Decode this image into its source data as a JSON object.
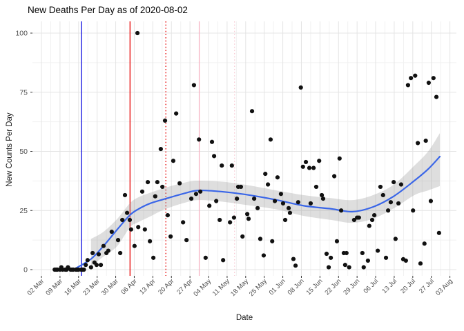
{
  "title": "New Deaths Per Day as of 2020-08-02",
  "chart_data": {
    "type": "scatter",
    "title": "New Deaths Per Day as of 2020-08-02",
    "xlabel": "Date",
    "ylabel": "New Counts Per Day",
    "x_unit": "days since first tick (02 Mar 2020)",
    "x_tick_labels": [
      "02 Mar",
      "09 Mar",
      "16 Mar",
      "23 Mar",
      "30 Mar",
      "06 Apr",
      "13 Apr",
      "20 Apr",
      "27 Apr",
      "04 May",
      "11 May",
      "18 May",
      "25 May",
      "01 Jun",
      "08 Jun",
      "15 Jun",
      "22 Jun",
      "29 Jun",
      "06 Jul",
      "13 Jul",
      "20 Jul",
      "27 Jul",
      "03 Aug"
    ],
    "x_tick_interval_days": 7,
    "y_ticks": [
      0,
      25,
      50,
      75,
      100
    ],
    "ylim": [
      -4,
      105
    ],
    "grid": "major+minor, light gray on white",
    "legend": "none",
    "point_color": "#111111",
    "axis_text_color": "#4d4d4d",
    "points": [
      [
        5,
        0
      ],
      [
        5.5,
        0
      ],
      [
        6,
        0
      ],
      [
        7,
        0
      ],
      [
        7.5,
        1
      ],
      [
        8,
        0
      ],
      [
        9,
        0
      ],
      [
        9.5,
        0
      ],
      [
        10,
        1
      ],
      [
        11,
        0
      ],
      [
        11.5,
        0
      ],
      [
        12,
        0
      ],
      [
        13,
        0
      ],
      [
        13.5,
        0
      ],
      [
        14,
        0
      ],
      [
        15,
        0
      ],
      [
        15.5,
        0
      ],
      [
        16,
        0
      ],
      [
        16.7,
        2
      ],
      [
        17.4,
        4
      ],
      [
        18.7,
        1
      ],
      [
        19.3,
        7
      ],
      [
        20,
        3
      ],
      [
        20.8,
        2
      ],
      [
        21.6,
        6.5
      ],
      [
        22.4,
        2
      ],
      [
        23.4,
        10
      ],
      [
        24.5,
        7
      ],
      [
        25.2,
        8
      ],
      [
        26.5,
        16
      ],
      [
        28.9,
        12.5
      ],
      [
        29.7,
        7
      ],
      [
        30.5,
        21
      ],
      [
        31.5,
        31.5
      ],
      [
        32.3,
        24
      ],
      [
        33.3,
        21
      ],
      [
        33.8,
        17
      ],
      [
        35.1,
        10
      ],
      [
        36.2,
        100
      ],
      [
        36.5,
        18
      ],
      [
        38,
        33
      ],
      [
        39,
        17
      ],
      [
        40.1,
        37
      ],
      [
        40.9,
        12
      ],
      [
        42.2,
        5
      ],
      [
        42.9,
        31
      ],
      [
        43.7,
        37
      ],
      [
        45,
        51
      ],
      [
        45.6,
        35
      ],
      [
        46.6,
        63
      ],
      [
        47.6,
        23
      ],
      [
        48.7,
        14
      ],
      [
        49.7,
        46
      ],
      [
        50.8,
        66
      ],
      [
        52.1,
        36.5
      ],
      [
        53.4,
        20
      ],
      [
        54.7,
        12.5
      ],
      [
        56.5,
        30
      ],
      [
        57.5,
        78
      ],
      [
        58.3,
        32
      ],
      [
        59.4,
        55
      ],
      [
        59.9,
        33
      ],
      [
        61.9,
        5
      ],
      [
        63.3,
        27
      ],
      [
        64.3,
        54
      ],
      [
        65.1,
        48
      ],
      [
        65.9,
        29
      ],
      [
        67.2,
        21
      ],
      [
        68,
        44
      ],
      [
        68.5,
        4
      ],
      [
        71.1,
        20
      ],
      [
        71.8,
        44
      ],
      [
        72.6,
        22
      ],
      [
        73.7,
        30
      ],
      [
        74.2,
        35
      ],
      [
        75.2,
        35
      ],
      [
        75.8,
        14
      ],
      [
        77.6,
        23.5
      ],
      [
        78.1,
        21.5
      ],
      [
        79.4,
        67
      ],
      [
        80.2,
        30
      ],
      [
        81.5,
        26
      ],
      [
        82.5,
        13
      ],
      [
        83.8,
        6
      ],
      [
        84.4,
        40.5
      ],
      [
        85.4,
        36
      ],
      [
        86.4,
        55
      ],
      [
        87,
        12
      ],
      [
        88,
        29
      ],
      [
        89,
        39
      ],
      [
        90.3,
        32
      ],
      [
        91.1,
        28
      ],
      [
        91.9,
        21
      ],
      [
        93.2,
        26
      ],
      [
        93.7,
        24
      ],
      [
        95,
        4.5
      ],
      [
        95.8,
        1.7
      ],
      [
        96.8,
        28.5
      ],
      [
        97.8,
        77
      ],
      [
        98.6,
        43.5
      ],
      [
        99.7,
        45.5
      ],
      [
        101,
        43
      ],
      [
        101.5,
        28
      ],
      [
        102.6,
        43
      ],
      [
        103.6,
        35
      ],
      [
        104.7,
        46
      ],
      [
        105.7,
        31.5
      ],
      [
        106.2,
        30
      ],
      [
        107.5,
        6.7
      ],
      [
        108.3,
        1
      ],
      [
        109.1,
        5
      ],
      [
        110.4,
        39.5
      ],
      [
        111.4,
        12
      ],
      [
        112.4,
        47
      ],
      [
        113,
        25
      ],
      [
        114,
        7
      ],
      [
        114.5,
        2
      ],
      [
        115,
        7
      ],
      [
        116,
        1
      ],
      [
        117.9,
        21
      ],
      [
        119,
        22
      ],
      [
        119.7,
        22
      ],
      [
        121,
        7
      ],
      [
        121.5,
        1
      ],
      [
        123.1,
        3.8
      ],
      [
        123.6,
        18.5
      ],
      [
        124.7,
        21
      ],
      [
        125.5,
        23
      ],
      [
        126.8,
        8
      ],
      [
        127.8,
        35
      ],
      [
        128.8,
        31.5
      ],
      [
        129.9,
        5
      ],
      [
        130.7,
        25
      ],
      [
        131.7,
        28.5
      ],
      [
        132.8,
        37
      ],
      [
        133.5,
        13
      ],
      [
        134.6,
        28
      ],
      [
        135.6,
        36
      ],
      [
        136.4,
        4.4
      ],
      [
        137.4,
        3.8
      ],
      [
        138.2,
        78
      ],
      [
        139.3,
        81
      ],
      [
        140.1,
        25
      ],
      [
        140.9,
        82
      ],
      [
        141.9,
        53.5
      ],
      [
        142.9,
        2.6
      ],
      [
        144.4,
        11
      ],
      [
        144.9,
        54.5
      ],
      [
        146,
        79
      ],
      [
        146.8,
        29
      ],
      [
        147.8,
        81
      ],
      [
        148.9,
        73
      ],
      [
        149.9,
        15.5
      ]
    ],
    "smooth_line": {
      "color": "#3A66E8",
      "x": [
        12.8,
        18.7,
        23.4,
        28.6,
        33.3,
        36.4,
        41,
        46.9,
        54.7,
        59.4,
        67.7,
        76.8,
        88.5,
        98.9,
        109.3,
        117.2,
        125,
        132.8,
        140.6,
        145.8,
        150.2
      ],
      "y": [
        0.5,
        4.5,
        10,
        17,
        23,
        25.5,
        28,
        30,
        32.5,
        33.5,
        33,
        31.8,
        29.5,
        27,
        25.7,
        24.5,
        26.5,
        31,
        37.6,
        42.5,
        47.8
      ]
    },
    "confidence_band": {
      "color": "#999999",
      "opacity": 0.32,
      "x": [
        18.7,
        23.4,
        28.6,
        33.3,
        36.4,
        41,
        46.9,
        54.7,
        59.4,
        67.7,
        76.8,
        88.5,
        98.9,
        109.3,
        117.2,
        125,
        132.8,
        140.6,
        145.8,
        150.2
      ],
      "low": [
        1.5,
        5.5,
        10,
        17.8,
        20,
        22.5,
        25.7,
        28.5,
        29.4,
        28.8,
        27.4,
        25.5,
        22.7,
        21,
        19.8,
        21.5,
        25.9,
        31.5,
        33.5,
        35.3
      ],
      "high": [
        13,
        16,
        21.5,
        28,
        30.5,
        32.5,
        34.7,
        37,
        37.6,
        37.2,
        35.9,
        33.5,
        31.5,
        30.2,
        29.4,
        31.5,
        35.9,
        44,
        50,
        57.7
      ]
    },
    "vlines": [
      {
        "name": "blue-solid-event-line",
        "x_day": 15.1,
        "color": "#0a0ae0",
        "style": "solid"
      },
      {
        "name": "red-solid-event-line",
        "x_day": 33.4,
        "color": "#e60000",
        "style": "solid"
      },
      {
        "name": "red-dotted-event-line",
        "x_day": 46.9,
        "color": "#e60000",
        "style": "dotted"
      },
      {
        "name": "pink-solid-event-line",
        "x_day": 59.5,
        "color": "#f6b3c3",
        "style": "solid"
      },
      {
        "name": "pink-dotted-event-line",
        "x_day": 72.8,
        "color": "#f9cdd6",
        "style": "dotted"
      }
    ]
  }
}
